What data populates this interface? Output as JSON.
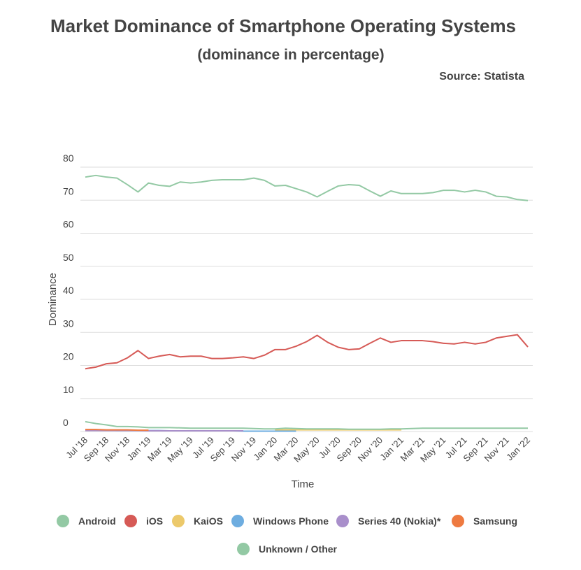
{
  "chart_data": {
    "type": "line",
    "title": "Market Dominance of Smartphone Operating Systems",
    "subtitle": "(dominance in percentage)",
    "source": "Source: Statista",
    "x_label": "Time",
    "y_label": "Dominance",
    "categories": [
      "Jul '18",
      null,
      "Sep '18",
      null,
      "Nov '18",
      null,
      "Jan '19",
      null,
      "Mar '19",
      null,
      "May '19",
      null,
      "Jul '19",
      null,
      "Sep '19",
      null,
      "Nov '19",
      null,
      "Jan '20",
      null,
      "Mar '20",
      null,
      "May '20",
      null,
      "Jul '20",
      null,
      "Sep '20",
      null,
      "Nov '20",
      null,
      "Jan '21",
      null,
      "Mar '21",
      null,
      "May '21",
      null,
      "Jul '21",
      null,
      "Sep '21",
      null,
      "Nov '21",
      null,
      "Jan '22"
    ],
    "series": [
      {
        "name": "Android",
        "color": "#93c9a4",
        "values": [
          77,
          77.5,
          77,
          76.7,
          74.7,
          72.5,
          75.2,
          74.5,
          74.2,
          75.5,
          75.2,
          75.5,
          76,
          76.2,
          76.2,
          76.2,
          76.7,
          76,
          74.3,
          74.5,
          73.5,
          72.5,
          71,
          72.7,
          74.3,
          74.7,
          74.5,
          72.8,
          71.2,
          72.8,
          72,
          72,
          72,
          72.3,
          73,
          73,
          72.5,
          73,
          72.5,
          71.2,
          71,
          70.2,
          69.9
        ]
      },
      {
        "name": "iOS",
        "color": "#d65a56",
        "values": [
          19,
          19.5,
          20.5,
          20.8,
          22.3,
          24.5,
          22.1,
          22.8,
          23.3,
          22.6,
          22.8,
          22.8,
          22.1,
          22.1,
          22.3,
          22.6,
          22.1,
          23.1,
          24.8,
          24.8,
          25.8,
          27.2,
          29.1,
          27,
          25.5,
          24.8,
          25,
          26.7,
          28.3,
          27,
          27.5,
          27.5,
          27.5,
          27.2,
          26.7,
          26.5,
          27,
          26.5,
          27,
          28.3,
          28.8,
          29.3,
          25.6
        ]
      },
      {
        "name": "KaiOS",
        "color": "#ecc96b",
        "values": [
          null,
          null,
          null,
          null,
          null,
          null,
          null,
          null,
          null,
          null,
          null,
          null,
          null,
          null,
          null,
          null,
          null,
          null,
          0.5,
          0.5,
          0.5,
          0.5,
          0.5,
          0.5,
          0.5,
          0.5,
          0.5,
          0.5,
          0.5,
          0.5,
          0.5,
          null,
          null,
          null,
          null,
          null,
          null,
          null,
          null,
          null,
          null,
          null,
          null
        ]
      },
      {
        "name": "Windows Phone",
        "color": "#6eade0",
        "values": [
          0.4,
          0.4,
          0.4,
          0.3,
          0.3,
          0.3,
          0.3,
          0.3,
          0.2,
          0.2,
          0.2,
          0.2,
          0.2,
          0.2,
          0.2,
          0.1,
          0.1,
          0.1,
          0.1,
          0.1,
          0.1,
          null,
          null,
          null,
          null,
          null,
          null,
          null,
          null,
          null,
          null,
          null,
          null,
          null,
          null,
          null,
          null,
          null,
          null,
          null,
          null,
          null,
          null
        ]
      },
      {
        "name": "Series 40 (Nokia)*",
        "color": "#a98fcb",
        "values": [
          0.3,
          0.3,
          0.3,
          0.3,
          0.3,
          0.3,
          0.2,
          0.2,
          0.2,
          0.2,
          0.2,
          0.2,
          0.2,
          0.2,
          0.2,
          0.2,
          null,
          null,
          null,
          null,
          null,
          null,
          null,
          null,
          null,
          null,
          null,
          null,
          null,
          null,
          null,
          null,
          null,
          null,
          null,
          null,
          null,
          null,
          null,
          null,
          null,
          null,
          null
        ]
      },
      {
        "name": "Samsung",
        "color": "#ee7a40",
        "values": [
          0.6,
          0.6,
          0.5,
          0.5,
          0.5,
          0.4,
          0.4,
          null,
          null,
          null,
          null,
          null,
          null,
          null,
          null,
          null,
          null,
          null,
          null,
          null,
          null,
          null,
          null,
          null,
          null,
          null,
          null,
          null,
          null,
          null,
          null,
          null,
          null,
          null,
          null,
          null,
          null,
          null,
          null,
          null,
          null,
          null,
          null
        ]
      },
      {
        "name": "Unknown / Other",
        "color": "#93c9a4",
        "values": [
          3,
          2.4,
          2,
          1.5,
          1.5,
          1.4,
          1.2,
          1.2,
          1.2,
          1.1,
          1,
          1,
          1,
          1,
          1,
          1,
          0.9,
          0.8,
          0.8,
          1,
          0.9,
          0.8,
          0.8,
          0.8,
          0.8,
          0.7,
          0.7,
          0.7,
          0.7,
          0.8,
          0.8,
          0.9,
          1,
          1,
          1,
          1,
          1,
          1,
          1,
          1,
          1,
          1,
          1
        ]
      }
    ],
    "ylim": [
      0,
      80
    ],
    "yticks": [
      0,
      10,
      20,
      30,
      40,
      50,
      60,
      70,
      80
    ],
    "grid": true
  }
}
